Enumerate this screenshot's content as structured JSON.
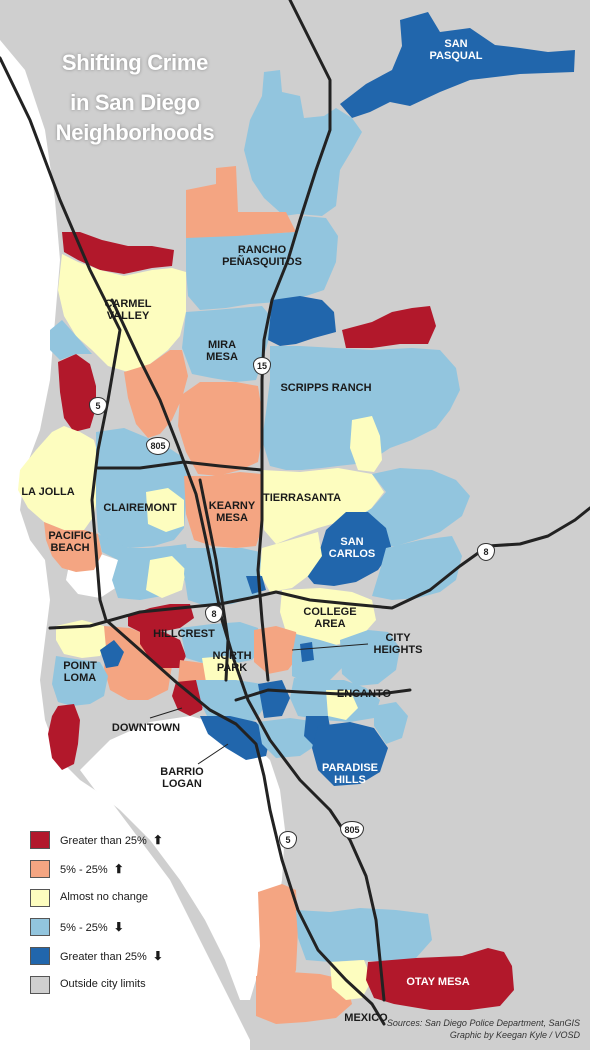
{
  "title": {
    "lines": [
      "Shifting Crime",
      "in San Diego",
      "Neighborhoods"
    ]
  },
  "colors": {
    "greater_increase": "#b2182b",
    "moderate_increase": "#f4a582",
    "no_change": "#fdfdbf",
    "moderate_decrease": "#92c5de",
    "greater_decrease": "#2166ac",
    "outside": "#cfcfcf",
    "ocean": "#ffffff",
    "road": "#222222"
  },
  "neighborhoods": {
    "san_pasqual": "SAN PASQUAL",
    "rancho_penasquitos": "RANCHO PEÑASQUITOS",
    "carmel_valley": "CARMEL VALLEY",
    "mira_mesa": "MIRA MESA",
    "scripps_ranch": "SCRIPPS RANCH",
    "la_jolla": "LA JOLLA",
    "clairemont": "CLAIREMONT",
    "kearny_mesa": "KEARNY MESA",
    "tierrasanta": "TIERRASANTA",
    "pacific_beach": "PACIFIC BEACH",
    "san_carlos": "SAN CARLOS",
    "college_area": "COLLEGE AREA",
    "hillcrest": "HILLCREST",
    "city_heights": "CITY HEIGHTS",
    "point_loma": "POINT LOMA",
    "north_park": "NORTH PARK",
    "encanto": "ENCANTO",
    "downtown": "DOWNTOWN",
    "barrio_logan": "BARRIO LOGAN",
    "paradise_hills": "PARADISE HILLS",
    "otay_mesa": "OTAY MESA",
    "mexico": "MEXICO"
  },
  "highways": {
    "i5_north": "5",
    "i15": "15",
    "i805_north": "805",
    "i8_east": "8",
    "i8_mid": "8",
    "i5_south": "5",
    "i805_south": "805"
  },
  "legend": {
    "items": [
      {
        "label": "Greater than 25%",
        "arrow": "up",
        "color": "#b2182b"
      },
      {
        "label": "5% - 25%",
        "arrow": "up",
        "color": "#f4a582"
      },
      {
        "label": "Almost no change",
        "arrow": "",
        "color": "#fdfdbf"
      },
      {
        "label": "5% - 25%",
        "arrow": "down",
        "color": "#92c5de"
      },
      {
        "label": "Greater than 25%",
        "arrow": "down",
        "color": "#2166ac"
      },
      {
        "label": "Outside city limits",
        "arrow": "",
        "color": "#cfcfcf"
      }
    ]
  },
  "credits": {
    "sources": "Sources: San Diego Police Department, SanGIS",
    "graphic": "Graphic by Keegan Kyle / VOSD"
  }
}
